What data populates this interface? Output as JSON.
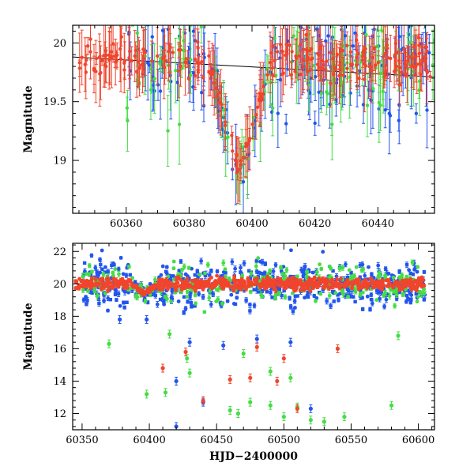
{
  "chart_data": [
    {
      "type": "scatter",
      "panel": "top",
      "title": "",
      "xlabel": "",
      "ylabel": "Magnitude",
      "xlim": [
        60343,
        60458
      ],
      "ylim": [
        20.15,
        18.55
      ],
      "y_inverted": true,
      "xticks": [
        60360,
        60380,
        60400,
        60420,
        60440
      ],
      "xtick_labels": [
        "60360",
        "60380",
        "60400",
        "60420",
        "60440"
      ],
      "yticks": [
        19,
        19.5,
        20
      ],
      "ytick_labels": [
        "19",
        "19.5",
        "20"
      ],
      "grid": false,
      "legend": "none",
      "error_bars": true,
      "trend_line": {
        "x": [
          60343,
          60458
        ],
        "y": [
          19.88,
          19.71
        ]
      },
      "series": [
        {
          "color": "#2255ee",
          "x_range": [
            60360,
            60458
          ],
          "baseline": 19.82,
          "scatter": 0.45,
          "peak_at": 60396,
          "peak_mag": 18.85
        },
        {
          "color": "#44dd44",
          "x_range": [
            60360,
            60458
          ],
          "baseline": 19.82,
          "scatter": 0.45,
          "peak_at": 60396,
          "peak_mag": 18.85
        },
        {
          "color": "#f0452c",
          "x_range": [
            60345,
            60458
          ],
          "baseline": 19.85,
          "scatter": 0.18,
          "peak_at": 60396,
          "peak_mag": 18.92
        }
      ]
    },
    {
      "type": "scatter",
      "panel": "bottom",
      "title": "",
      "xlabel": "HJD−2400000",
      "ylabel": "Magnitude",
      "xlim": [
        60343,
        60612
      ],
      "ylim": [
        22.5,
        11
      ],
      "y_inverted": true,
      "xticks": [
        60350,
        60400,
        60450,
        60500,
        60550,
        60600
      ],
      "xtick_labels": [
        "60350",
        "60400",
        "60450",
        "60500",
        "60550",
        "60600"
      ],
      "yticks": [
        12,
        14,
        16,
        18,
        20,
        22
      ],
      "ytick_labels": [
        "12",
        "14",
        "16",
        "18",
        "20",
        "22"
      ],
      "grid": false,
      "legend": "none",
      "error_bars": true,
      "series": [
        {
          "color": "#2255ee",
          "x_range": [
            60350,
            60605
          ],
          "baseline": 20.0,
          "scatter": 1.4,
          "peak_at": 60396,
          "peak_mag": 19.3
        },
        {
          "color": "#44dd44",
          "x_range": [
            60350,
            60605
          ],
          "baseline": 20.0,
          "scatter": 1.2,
          "peak_at": 60396,
          "peak_mag": 19.3
        },
        {
          "color": "#f0452c",
          "x_range": [
            60345,
            60605
          ],
          "baseline": 20.0,
          "scatter": 0.35,
          "peak_at": 60396,
          "peak_mag": 19.4
        }
      ],
      "outliers": [
        {
          "color": "#2255ee",
          "x": 60420,
          "y": 11.2
        },
        {
          "color": "#2255ee",
          "x": 60420,
          "y": 14.0
        },
        {
          "color": "#2255ee",
          "x": 60440,
          "y": 12.7
        },
        {
          "color": "#2255ee",
          "x": 60520,
          "y": 12.3
        },
        {
          "color": "#2255ee",
          "x": 60430,
          "y": 16.4
        },
        {
          "color": "#2255ee",
          "x": 60455,
          "y": 16.2
        },
        {
          "color": "#2255ee",
          "x": 60505,
          "y": 16.4
        },
        {
          "color": "#2255ee",
          "x": 60480,
          "y": 16.6
        },
        {
          "color": "#2255ee",
          "x": 60398,
          "y": 17.8
        },
        {
          "color": "#2255ee",
          "x": 60378,
          "y": 17.8
        },
        {
          "color": "#44dd44",
          "x": 60398,
          "y": 13.2
        },
        {
          "color": "#44dd44",
          "x": 60412,
          "y": 13.3
        },
        {
          "color": "#44dd44",
          "x": 60430,
          "y": 14.5
        },
        {
          "color": "#44dd44",
          "x": 60460,
          "y": 12.2
        },
        {
          "color": "#44dd44",
          "x": 60466,
          "y": 12.0
        },
        {
          "color": "#44dd44",
          "x": 60475,
          "y": 12.7
        },
        {
          "color": "#44dd44",
          "x": 60490,
          "y": 12.5
        },
        {
          "color": "#44dd44",
          "x": 60500,
          "y": 11.8
        },
        {
          "color": "#44dd44",
          "x": 60510,
          "y": 12.4
        },
        {
          "color": "#44dd44",
          "x": 60520,
          "y": 11.6
        },
        {
          "color": "#44dd44",
          "x": 60530,
          "y": 11.5
        },
        {
          "color": "#44dd44",
          "x": 60545,
          "y": 11.8
        },
        {
          "color": "#44dd44",
          "x": 60580,
          "y": 12.5
        },
        {
          "color": "#44dd44",
          "x": 60428,
          "y": 15.4
        },
        {
          "color": "#44dd44",
          "x": 60505,
          "y": 14.2
        },
        {
          "color": "#44dd44",
          "x": 60490,
          "y": 14.6
        },
        {
          "color": "#44dd44",
          "x": 60370,
          "y": 16.3
        },
        {
          "color": "#44dd44",
          "x": 60415,
          "y": 16.9
        },
        {
          "color": "#44dd44",
          "x": 60470,
          "y": 15.7
        },
        {
          "color": "#44dd44",
          "x": 60585,
          "y": 16.8
        },
        {
          "color": "#f0452c",
          "x": 60410,
          "y": 14.8
        },
        {
          "color": "#f0452c",
          "x": 60440,
          "y": 12.8
        },
        {
          "color": "#f0452c",
          "x": 60460,
          "y": 14.1
        },
        {
          "color": "#f0452c",
          "x": 60475,
          "y": 14.2
        },
        {
          "color": "#f0452c",
          "x": 60480,
          "y": 16.1
        },
        {
          "color": "#f0452c",
          "x": 60495,
          "y": 14.0
        },
        {
          "color": "#f0452c",
          "x": 60510,
          "y": 12.3
        },
        {
          "color": "#f0452c",
          "x": 60427,
          "y": 15.8
        },
        {
          "color": "#f0452c",
          "x": 60500,
          "y": 15.4
        },
        {
          "color": "#f0452c",
          "x": 60540,
          "y": 16.0
        }
      ]
    }
  ]
}
